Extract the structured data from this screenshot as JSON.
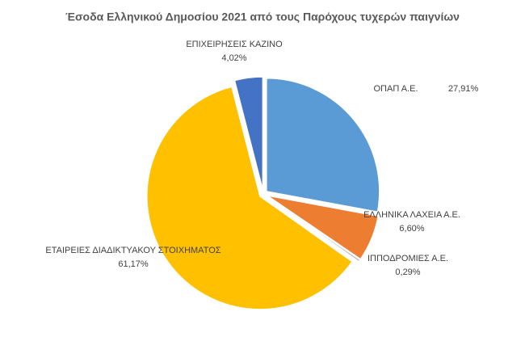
{
  "chart_data": {
    "type": "pie",
    "title": "Έσοδα Ελληνικού Δημοσίου 2021 από τους Παρόχους τυχερών παιγνίων",
    "categories": [
      "ΟΠΑΠ Α.Ε.",
      "ΕΛΛΗΝΙΚΑ ΛΑΧΕΙΑ Α.Ε.",
      "ΙΠΠΟΔΡΟΜΙΕΣ Α.Ε.",
      "ΕΤΑΙΡΕΙΕΣ ΔΙΑΔΙΚΤΥΑΚΟΥ ΣΤΟΙΧΗΜΑΤΟΣ",
      "ΕΠΙΧΕΙΡΗΣΕΙΣ ΚΑΖΙΝΟ"
    ],
    "values": [
      27.91,
      6.6,
      0.29,
      61.17,
      4.02
    ],
    "value_labels": [
      "27,91%",
      "6,60%",
      "0,29%",
      "61,17%",
      "4,02%"
    ],
    "colors": [
      "#5b9bd5",
      "#ed7d31",
      "#a5a5a5",
      "#ffc000",
      "#4472c4"
    ]
  }
}
